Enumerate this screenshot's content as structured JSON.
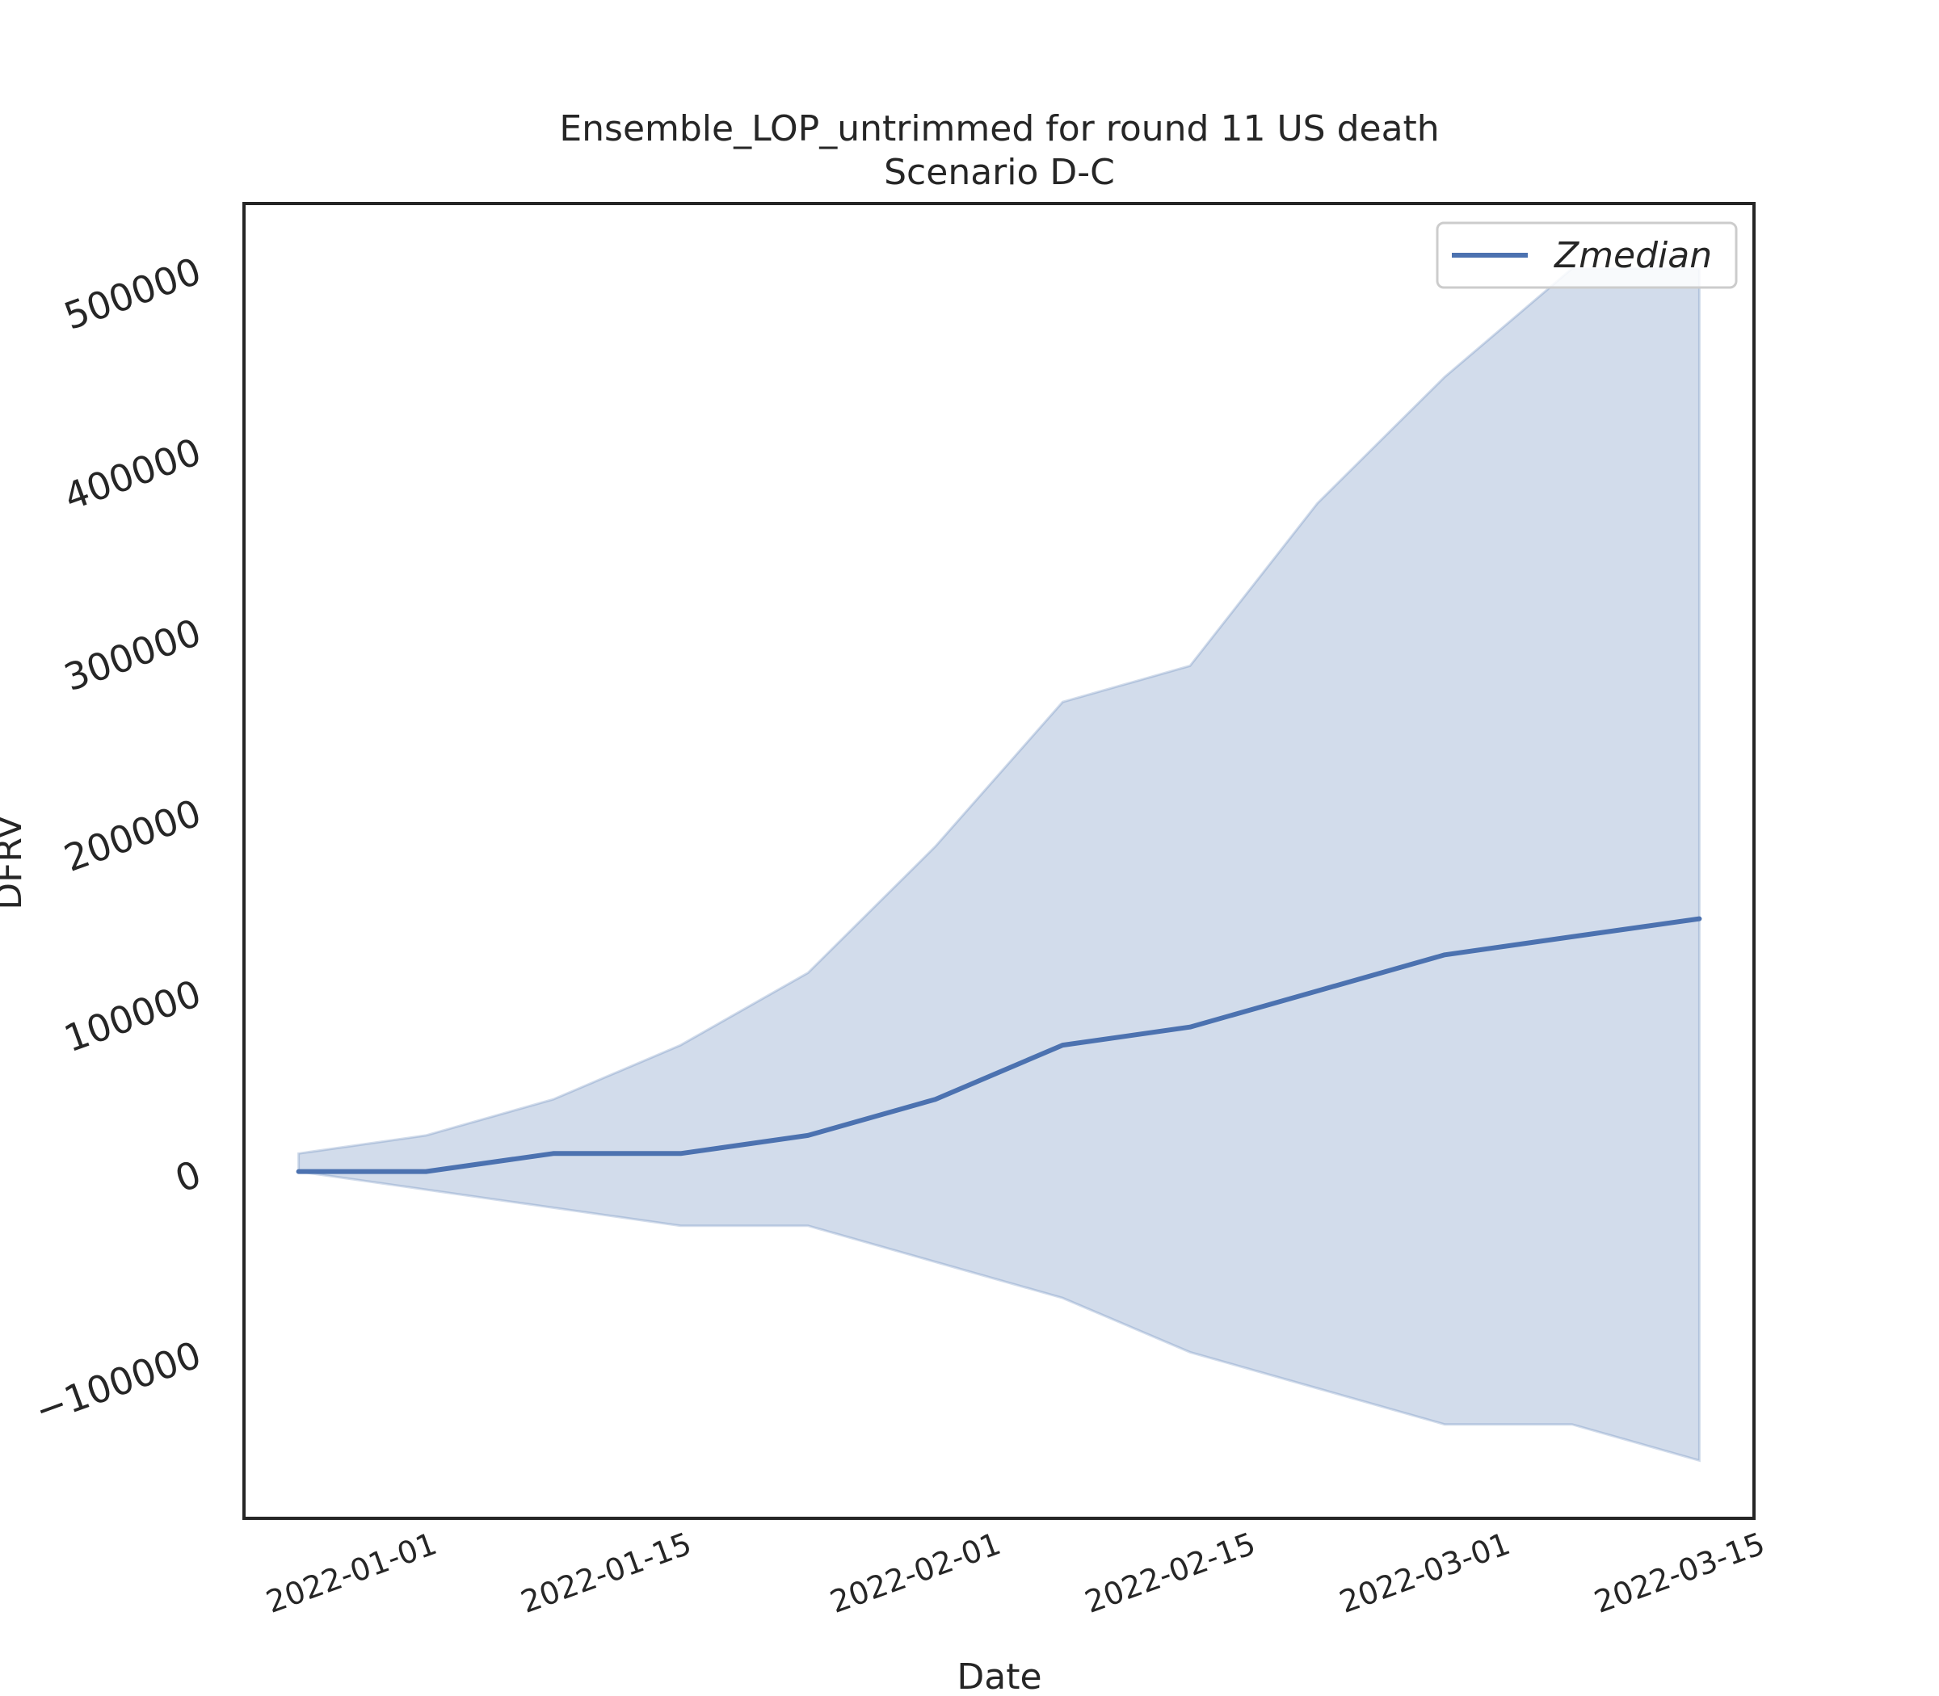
{
  "chart_data": {
    "type": "line",
    "title": "Ensemble_LOP_untrimmed for round 11 US death",
    "subtitle": "Scenario D-C",
    "xlabel": "Date",
    "ylabel": "DFRV",
    "x": [
      "2021-12-25",
      "2022-01-01",
      "2022-01-08",
      "2022-01-15",
      "2022-01-22",
      "2022-01-29",
      "2022-02-05",
      "2022-02-12",
      "2022-02-19",
      "2022-02-26",
      "2022-03-05",
      "2022-03-12"
    ],
    "series": [
      {
        "name": "Zmedian",
        "color": "#4c72b0",
        "values": [
          0,
          0,
          10000,
          10000,
          20000,
          40000,
          70000,
          80000,
          100000,
          120000,
          130000,
          140000
        ]
      }
    ],
    "band": {
      "color": "#4c72b0",
      "lower": [
        0,
        -10000,
        -20000,
        -30000,
        -30000,
        -50000,
        -70000,
        -100000,
        -120000,
        -140000,
        -140000,
        -160000
      ],
      "upper": [
        10000,
        20000,
        40000,
        70000,
        110000,
        180000,
        260000,
        280000,
        370000,
        440000,
        500000,
        500000
      ]
    },
    "xticks": [
      "2022-01-01",
      "2022-01-15",
      "2022-02-01",
      "2022-02-15",
      "2022-03-01",
      "2022-03-15"
    ],
    "yticks": [
      -100000,
      0,
      100000,
      200000,
      300000,
      400000,
      500000
    ],
    "ytick_labels": [
      "−100000",
      "0",
      "100000",
      "200000",
      "300000",
      "400000",
      "500000"
    ],
    "xlim": [
      "2021-12-22",
      "2022-03-15"
    ],
    "ylim": [
      -192000,
      536000
    ],
    "grid": false,
    "legend": {
      "placement": "top-right",
      "entries": [
        "Zmedian"
      ]
    }
  }
}
